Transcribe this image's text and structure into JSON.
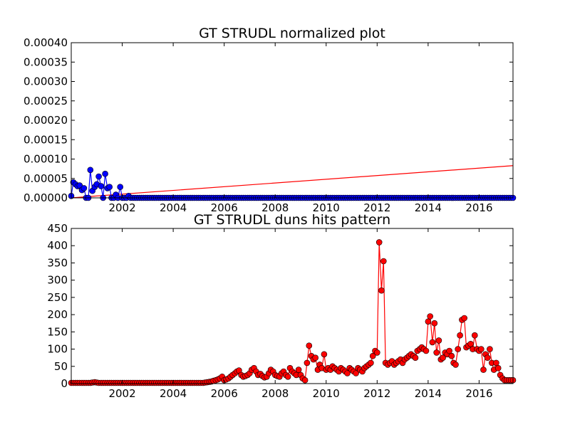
{
  "figure": {
    "background": "#ffffff"
  },
  "chart_data": [
    {
      "type": "line",
      "title": "GT STRUDL normalized plot",
      "xlabel": "",
      "ylabel": "",
      "xlim": [
        2000.0,
        2017.33
      ],
      "ylim": [
        0.0,
        0.0004
      ],
      "xticks": [
        2002,
        2004,
        2006,
        2008,
        2010,
        2012,
        2014,
        2016
      ],
      "yticks": [
        0.0,
        5e-05,
        0.0001,
        0.00015,
        0.0002,
        0.00025,
        0.0003,
        0.00035,
        0.0004
      ],
      "ytick_labels": [
        "0.00000",
        "0.00005",
        "0.00010",
        "0.00015",
        "0.00020",
        "0.00025",
        "0.00030",
        "0.00035",
        "0.00040"
      ],
      "grid": false,
      "series": [
        {
          "kind": "line+marker",
          "color": "#0000ff",
          "marker_color": "#0000ff",
          "marker_edge": "#000000",
          "x": [
            2000.0,
            2000.08,
            2000.17,
            2000.25,
            2000.33,
            2000.42,
            2000.5,
            2000.58,
            2000.67,
            2000.75,
            2000.83,
            2000.92,
            2001.0,
            2001.08,
            2001.17,
            2001.25,
            2001.33,
            2001.42,
            2001.5,
            2001.58,
            2001.67,
            2001.75,
            2001.83,
            2001.92,
            2002.0,
            2002.08,
            2002.17,
            2002.25,
            2002.33,
            2002.42,
            2002.5,
            2002.58,
            2002.67,
            2002.75,
            2002.83,
            2002.92,
            2003.0,
            2003.08,
            2003.17,
            2003.25,
            2003.33,
            2003.42,
            2003.5,
            2003.58,
            2003.67,
            2003.75,
            2003.83,
            2003.92,
            2004.0,
            2004.08,
            2004.17,
            2004.25,
            2004.33,
            2004.42,
            2004.5,
            2004.58,
            2004.67,
            2004.75,
            2004.83,
            2004.92,
            2005.0,
            2005.08,
            2005.17,
            2005.25,
            2005.33,
            2005.42,
            2005.5,
            2005.58,
            2005.67,
            2005.75,
            2005.83,
            2005.92,
            2006.0,
            2006.08,
            2006.17,
            2006.25,
            2006.33,
            2006.42,
            2006.5,
            2006.58,
            2006.67,
            2006.75,
            2006.83,
            2006.92,
            2007.0,
            2007.08,
            2007.17,
            2007.25,
            2007.33,
            2007.42,
            2007.5,
            2007.58,
            2007.67,
            2007.75,
            2007.83,
            2007.92,
            2008.0,
            2008.08,
            2008.17,
            2008.25,
            2008.33,
            2008.42,
            2008.5,
            2008.58,
            2008.67,
            2008.75,
            2008.83,
            2008.92,
            2009.0,
            2009.08,
            2009.17,
            2009.25,
            2009.33,
            2009.42,
            2009.5,
            2009.58,
            2009.67,
            2009.75,
            2009.83,
            2009.92,
            2010.0,
            2010.08,
            2010.17,
            2010.25,
            2010.33,
            2010.42,
            2010.5,
            2010.58,
            2010.67,
            2010.75,
            2010.83,
            2010.92,
            2011.0,
            2011.08,
            2011.17,
            2011.25,
            2011.33,
            2011.42,
            2011.5,
            2011.58,
            2011.67,
            2011.75,
            2011.83,
            2011.92,
            2012.0,
            2012.08,
            2012.17,
            2012.25,
            2012.33,
            2012.42,
            2012.5,
            2012.58,
            2012.67,
            2012.75,
            2012.83,
            2012.92,
            2013.0,
            2013.08,
            2013.17,
            2013.25,
            2013.33,
            2013.42,
            2013.5,
            2013.58,
            2013.67,
            2013.75,
            2013.83,
            2013.92,
            2014.0,
            2014.08,
            2014.17,
            2014.25,
            2014.33,
            2014.42,
            2014.5,
            2014.58,
            2014.67,
            2014.75,
            2014.83,
            2014.92,
            2015.0,
            2015.08,
            2015.17,
            2015.25,
            2015.33,
            2015.42,
            2015.5,
            2015.58,
            2015.67,
            2015.75,
            2015.83,
            2015.92,
            2016.0,
            2016.08,
            2016.17,
            2016.25,
            2016.33,
            2016.42,
            2016.5,
            2016.58,
            2016.67,
            2016.75,
            2016.83,
            2016.92,
            2017.0,
            2017.08,
            2017.17,
            2017.25,
            2017.33
          ],
          "y": [
            5e-06,
            4e-05,
            3.5e-05,
            3e-05,
            3.2e-05,
            2e-05,
            2.5e-05,
            0.0,
            0.0,
            7.2e-05,
            1.8e-05,
            2.8e-05,
            3.5e-05,
            5.5e-05,
            3e-05,
            0.0,
            6.2e-05,
            2.5e-05,
            2.8e-05,
            0.0,
            0.0,
            8e-06,
            0.0,
            2.8e-05,
            0.0,
            0.0,
            0.0,
            5e-06,
            0.0,
            0.0,
            0.0,
            0.0,
            0.0,
            0.0,
            0.0,
            0.0,
            0.0,
            0.0,
            0.0,
            0.0,
            0.0,
            0.0,
            0.0,
            0.0,
            0.0,
            0.0,
            0.0,
            0.0,
            0.0,
            0.0,
            0.0,
            0.0,
            0.0,
            0.0,
            0.0,
            0.0,
            0.0,
            0.0,
            0.0,
            0.0,
            0.0,
            0.0,
            0.0,
            0.0,
            0.0,
            0.0,
            0.0,
            0.0,
            0.0,
            0.0,
            0.0,
            0.0,
            0.0,
            0.0,
            0.0,
            0.0,
            0.0,
            0.0,
            0.0,
            0.0,
            0.0,
            0.0,
            0.0,
            0.0,
            0.0,
            0.0,
            0.0,
            0.0,
            0.0,
            0.0,
            0.0,
            0.0,
            0.0,
            0.0,
            0.0,
            0.0,
            0.0,
            0.0,
            0.0,
            0.0,
            0.0,
            0.0,
            0.0,
            0.0,
            0.0,
            0.0,
            0.0,
            0.0,
            0.0,
            0.0,
            0.0,
            0.0,
            0.0,
            0.0,
            0.0,
            0.0,
            0.0,
            0.0,
            0.0,
            0.0,
            0.0,
            0.0,
            0.0,
            0.0,
            0.0,
            0.0,
            0.0,
            0.0,
            0.0,
            0.0,
            0.0,
            0.0,
            0.0,
            0.0,
            0.0,
            0.0,
            0.0,
            0.0,
            0.0,
            0.0,
            0.0,
            0.0,
            0.0,
            0.0,
            0.0,
            0.0,
            0.0,
            0.0,
            0.0,
            0.0,
            0.0,
            0.0,
            0.0,
            0.0,
            0.0,
            0.0,
            0.0,
            0.0,
            0.0,
            0.0,
            0.0,
            0.0,
            0.0,
            0.0,
            0.0,
            0.0,
            0.0,
            0.0,
            0.0,
            0.0,
            0.0,
            0.0,
            0.0,
            0.0,
            0.0,
            0.0,
            0.0,
            0.0,
            0.0,
            0.0,
            0.0,
            0.0,
            0.0,
            0.0,
            0.0,
            0.0,
            0.0,
            0.0,
            0.0,
            0.0,
            0.0,
            0.0,
            0.0,
            0.0,
            0.0,
            0.0,
            0.0,
            0.0,
            0.0,
            0.0,
            0.0,
            0.0,
            0.0,
            0.0,
            0.0,
            0.0,
            0.0,
            0.0,
            0.0
          ]
        },
        {
          "kind": "trend",
          "color": "#ff0000",
          "x": [
            2000.0,
            2017.33
          ],
          "y": [
            0.0,
            8.3e-05
          ]
        }
      ]
    },
    {
      "type": "line",
      "title": "GT STRUDL duns hits pattern",
      "xlabel": "",
      "ylabel": "",
      "xlim": [
        2000.0,
        2017.33
      ],
      "ylim": [
        0,
        450
      ],
      "xticks": [
        2002,
        2004,
        2006,
        2008,
        2010,
        2012,
        2014,
        2016
      ],
      "yticks": [
        0,
        50,
        100,
        150,
        200,
        250,
        300,
        350,
        400,
        450
      ],
      "ytick_labels": [
        "0",
        "50",
        "100",
        "150",
        "200",
        "250",
        "300",
        "350",
        "400",
        "450"
      ],
      "grid": false,
      "series": [
        {
          "kind": "line+marker",
          "color": "#ff0000",
          "marker_color": "#ff0000",
          "marker_edge": "#000000",
          "x": [
            2000.0,
            2000.08,
            2000.17,
            2000.25,
            2000.33,
            2000.42,
            2000.5,
            2000.58,
            2000.67,
            2000.75,
            2000.83,
            2000.92,
            2001.0,
            2001.08,
            2001.17,
            2001.25,
            2001.33,
            2001.42,
            2001.5,
            2001.58,
            2001.67,
            2001.75,
            2001.83,
            2001.92,
            2002.0,
            2002.08,
            2002.17,
            2002.25,
            2002.33,
            2002.42,
            2002.5,
            2002.58,
            2002.67,
            2002.75,
            2002.83,
            2002.92,
            2003.0,
            2003.08,
            2003.17,
            2003.25,
            2003.33,
            2003.42,
            2003.5,
            2003.58,
            2003.67,
            2003.75,
            2003.83,
            2003.92,
            2004.0,
            2004.08,
            2004.17,
            2004.25,
            2004.33,
            2004.42,
            2004.5,
            2004.58,
            2004.67,
            2004.75,
            2004.83,
            2004.92,
            2005.0,
            2005.08,
            2005.17,
            2005.25,
            2005.33,
            2005.42,
            2005.5,
            2005.58,
            2005.67,
            2005.75,
            2005.83,
            2005.92,
            2006.0,
            2006.08,
            2006.17,
            2006.25,
            2006.33,
            2006.42,
            2006.5,
            2006.58,
            2006.67,
            2006.75,
            2006.83,
            2006.92,
            2007.0,
            2007.08,
            2007.17,
            2007.25,
            2007.33,
            2007.42,
            2007.5,
            2007.58,
            2007.67,
            2007.75,
            2007.83,
            2007.92,
            2008.0,
            2008.08,
            2008.17,
            2008.25,
            2008.33,
            2008.42,
            2008.5,
            2008.58,
            2008.67,
            2008.75,
            2008.83,
            2008.92,
            2009.0,
            2009.08,
            2009.17,
            2009.25,
            2009.33,
            2009.42,
            2009.5,
            2009.58,
            2009.67,
            2009.75,
            2009.83,
            2009.92,
            2010.0,
            2010.08,
            2010.17,
            2010.25,
            2010.33,
            2010.42,
            2010.5,
            2010.58,
            2010.67,
            2010.75,
            2010.83,
            2010.92,
            2011.0,
            2011.08,
            2011.17,
            2011.25,
            2011.33,
            2011.42,
            2011.5,
            2011.58,
            2011.67,
            2011.75,
            2011.83,
            2011.92,
            2012.0,
            2012.08,
            2012.17,
            2012.25,
            2012.33,
            2012.42,
            2012.5,
            2012.58,
            2012.67,
            2012.75,
            2012.83,
            2012.92,
            2013.0,
            2013.08,
            2013.17,
            2013.25,
            2013.33,
            2013.42,
            2013.5,
            2013.58,
            2013.67,
            2013.75,
            2013.83,
            2013.92,
            2014.0,
            2014.08,
            2014.17,
            2014.25,
            2014.33,
            2014.42,
            2014.5,
            2014.58,
            2014.67,
            2014.75,
            2014.83,
            2014.92,
            2015.0,
            2015.08,
            2015.17,
            2015.25,
            2015.33,
            2015.42,
            2015.5,
            2015.58,
            2015.67,
            2015.75,
            2015.83,
            2015.92,
            2016.0,
            2016.08,
            2016.17,
            2016.25,
            2016.33,
            2016.42,
            2016.5,
            2016.58,
            2016.67,
            2016.75,
            2016.83,
            2016.92,
            2017.0,
            2017.08,
            2017.17,
            2017.25,
            2017.33
          ],
          "y": [
            2,
            2,
            2,
            2,
            2,
            2,
            2,
            2,
            2,
            2,
            3,
            4,
            3,
            2,
            2,
            2,
            2,
            2,
            2,
            2,
            2,
            2,
            2,
            2,
            2,
            2,
            2,
            2,
            2,
            2,
            2,
            2,
            2,
            2,
            2,
            2,
            2,
            2,
            2,
            2,
            2,
            2,
            2,
            2,
            2,
            2,
            2,
            2,
            2,
            2,
            2,
            2,
            2,
            2,
            2,
            2,
            2,
            2,
            2,
            2,
            2,
            2,
            2,
            3,
            4,
            5,
            6,
            8,
            10,
            12,
            15,
            20,
            10,
            12,
            15,
            20,
            25,
            30,
            35,
            38,
            25,
            20,
            22,
            25,
            30,
            40,
            45,
            35,
            25,
            28,
            22,
            18,
            20,
            30,
            40,
            35,
            25,
            22,
            20,
            30,
            35,
            25,
            20,
            45,
            35,
            30,
            25,
            40,
            25,
            15,
            10,
            60,
            110,
            80,
            70,
            75,
            40,
            55,
            45,
            85,
            40,
            45,
            40,
            50,
            45,
            40,
            35,
            45,
            40,
            35,
            30,
            45,
            40,
            35,
            30,
            45,
            40,
            35,
            45,
            50,
            55,
            60,
            80,
            95,
            90,
            410,
            270,
            355,
            60,
            55,
            60,
            65,
            55,
            60,
            65,
            70,
            60,
            70,
            75,
            80,
            85,
            80,
            75,
            95,
            100,
            105,
            100,
            95,
            180,
            195,
            120,
            175,
            90,
            125,
            70,
            75,
            90,
            85,
            95,
            80,
            60,
            55,
            100,
            140,
            185,
            190,
            105,
            110,
            115,
            100,
            140,
            100,
            95,
            100,
            40,
            85,
            75,
            100,
            60,
            40,
            60,
            45,
            25,
            15,
            10,
            10,
            10,
            10,
            10
          ]
        }
      ]
    }
  ]
}
